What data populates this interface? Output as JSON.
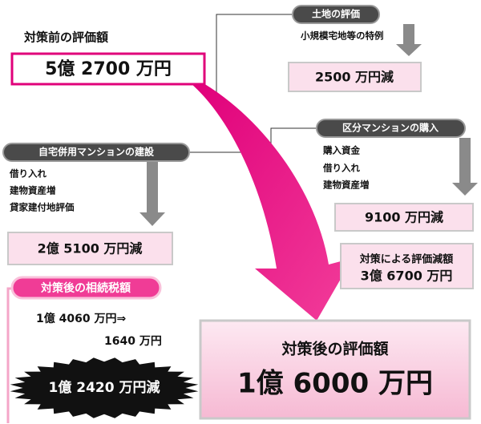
{
  "before": {
    "label": "対策前の評価額",
    "value": "5億 2700 万円"
  },
  "land": {
    "title": "土地の評価",
    "items": [
      "小規模宅地等の特例"
    ],
    "result": "2500 万円減"
  },
  "condo": {
    "title": "区分マンションの購入",
    "items": [
      "購入資金",
      "借り入れ",
      "建物資産増"
    ],
    "result": "9100 万円減"
  },
  "home": {
    "title": "自宅併用マンションの建設",
    "items": [
      "借り入れ",
      "建物資産増",
      "貸家建付地評価"
    ],
    "result": "2億 5100 万円減"
  },
  "reduction": {
    "label": "対策による評価減額",
    "value": "3億 6700 万円"
  },
  "tax": {
    "title": "対策後の相続税額",
    "change": "1億 4060 万円⇒",
    "after": "1640 万円",
    "saving": "1億 2420 万円減"
  },
  "after": {
    "label": "対策後の評価額",
    "value": "1億 6000 万円"
  }
}
